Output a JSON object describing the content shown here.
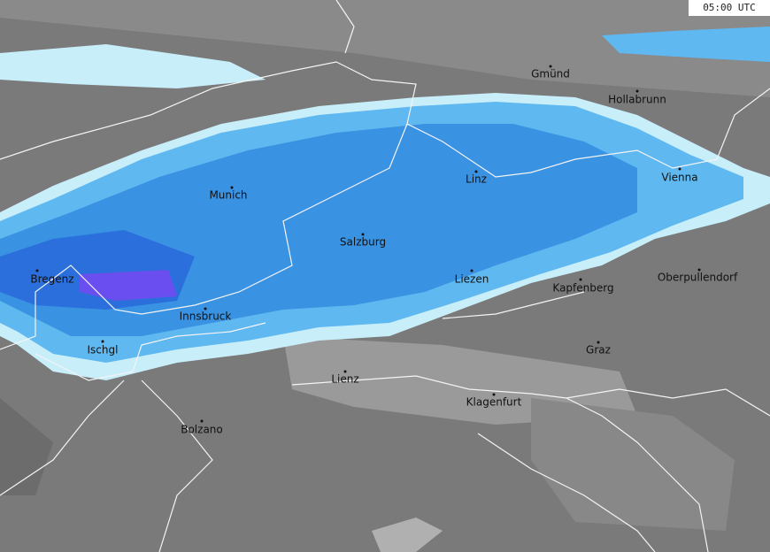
{
  "timestamp": "05:00 UTC",
  "cities": [
    {
      "label": "Gmünd"
    },
    {
      "label": "Hollabrunn"
    },
    {
      "label": "Munich"
    },
    {
      "label": "Linz"
    },
    {
      "label": "Vienna"
    },
    {
      "label": "Salzburg"
    },
    {
      "label": "Bregenz"
    },
    {
      "label": "Liezen"
    },
    {
      "label": "Kapfenberg"
    },
    {
      "label": "Oberpullendorf"
    },
    {
      "label": "Innsbruck"
    },
    {
      "label": "Ischgl"
    },
    {
      "label": "Graz"
    },
    {
      "label": "Lienz"
    },
    {
      "label": "Klagenfurt"
    },
    {
      "label": "Bolzano"
    }
  ]
}
